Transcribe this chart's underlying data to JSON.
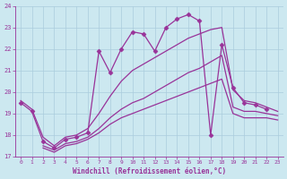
{
  "xlabel": "Windchill (Refroidissement éolien,°C)",
  "background_color": "#cce8f0",
  "grid_color": "#aaccdd",
  "line_color": "#993399",
  "xlim": [
    0,
    23
  ],
  "ylim": [
    17,
    24
  ],
  "yticks": [
    17,
    18,
    19,
    20,
    21,
    22,
    23,
    24
  ],
  "xticks": [
    0,
    1,
    2,
    3,
    4,
    5,
    6,
    7,
    8,
    9,
    10,
    11,
    12,
    13,
    14,
    15,
    16,
    17,
    18,
    19,
    20,
    21,
    22,
    23
  ],
  "lines": [
    {
      "x": [
        0,
        1,
        2,
        3,
        4,
        5,
        6,
        7,
        8,
        9,
        10,
        11,
        12,
        13,
        14,
        15,
        16,
        17,
        18,
        19,
        20,
        21,
        22
      ],
      "y": [
        19.5,
        19.1,
        17.7,
        17.4,
        17.8,
        17.9,
        18.1,
        21.9,
        20.9,
        22.0,
        22.8,
        22.7,
        21.9,
        23.0,
        23.4,
        23.6,
        23.3,
        18.0,
        22.2,
        20.2,
        19.5,
        19.4,
        19.2
      ],
      "marker": "D",
      "markersize": 2.5,
      "linewidth": 0.9
    },
    {
      "x": [
        0,
        1,
        2,
        3,
        4,
        5,
        6,
        7,
        8,
        9,
        10,
        11,
        12,
        13,
        14,
        15,
        16,
        17,
        18,
        19,
        20,
        21,
        22,
        23
      ],
      "y": [
        19.6,
        19.2,
        17.9,
        17.5,
        17.9,
        18.0,
        18.3,
        19.0,
        19.8,
        20.5,
        21.0,
        21.3,
        21.6,
        21.9,
        22.2,
        22.5,
        22.7,
        22.9,
        23.0,
        20.1,
        19.6,
        19.5,
        19.3,
        19.1
      ],
      "marker": null,
      "markersize": 0,
      "linewidth": 0.9
    },
    {
      "x": [
        2,
        3,
        4,
        5,
        6,
        7,
        8,
        9,
        10,
        11,
        12,
        13,
        14,
        15,
        16,
        17,
        18,
        19,
        20,
        21,
        22,
        23
      ],
      "y": [
        17.5,
        17.3,
        17.6,
        17.7,
        17.9,
        18.3,
        18.8,
        19.2,
        19.5,
        19.7,
        20.0,
        20.3,
        20.6,
        20.9,
        21.1,
        21.4,
        21.7,
        19.3,
        19.1,
        19.1,
        19.0,
        18.9
      ],
      "marker": null,
      "markersize": 0,
      "linewidth": 0.9
    },
    {
      "x": [
        2,
        3,
        4,
        5,
        6,
        7,
        8,
        9,
        10,
        11,
        12,
        13,
        14,
        15,
        16,
        17,
        18,
        19,
        20,
        21,
        22,
        23
      ],
      "y": [
        17.4,
        17.2,
        17.5,
        17.6,
        17.8,
        18.1,
        18.5,
        18.8,
        19.0,
        19.2,
        19.4,
        19.6,
        19.8,
        20.0,
        20.2,
        20.4,
        20.6,
        19.0,
        18.8,
        18.8,
        18.8,
        18.7
      ],
      "marker": null,
      "markersize": 0,
      "linewidth": 0.9
    }
  ]
}
